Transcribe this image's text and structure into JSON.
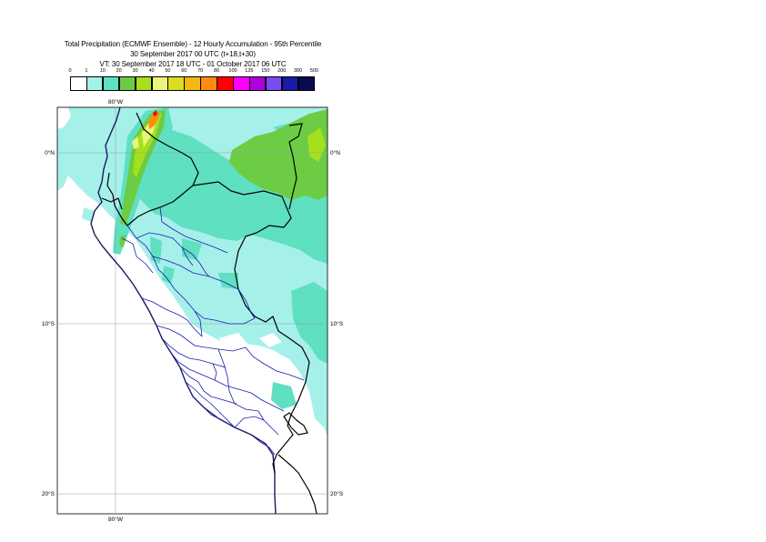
{
  "title": {
    "line1": "Total Precipitation (ECMWF Ensemble) - 12 Hourly Accumulation - 95th Percentile",
    "line2": "30 September 2017 00 UTC (t+18,t+30)",
    "line3": "VT: 30 September 2017 18 UTC - 01 October 2017 06 UTC"
  },
  "legend": {
    "thresholds": [
      "0",
      "1",
      "10",
      "20",
      "30",
      "40",
      "50",
      "60",
      "70",
      "80",
      "100",
      "125",
      "150",
      "200",
      "300",
      "500"
    ],
    "colors": [
      "#ffffff",
      "#a6f0ea",
      "#5fe0c0",
      "#6ccc44",
      "#a6e01c",
      "#e8f57a",
      "#dcdc20",
      "#f4b810",
      "#ff8c10",
      "#ff0000",
      "#ff00ff",
      "#b000dc",
      "#7a4cf2",
      "#1a1aa8",
      "#0a0a52"
    ]
  },
  "map": {
    "longitude_label_top": "80°W",
    "longitude_label_bottom": "80°W",
    "latitude_labels": [
      {
        "left": "0°N",
        "right": "0°N"
      },
      {
        "left": "10°S",
        "right": "10°S"
      },
      {
        "left": "20°S",
        "right": "20°S"
      }
    ],
    "colors": {
      "light_rain": "#a6f0ea",
      "moderate_rain": "#5fe0c0",
      "green_rain": "#6ccc44",
      "yellow_green": "#a6e01c",
      "yellow": "#e8f57a",
      "orange": "#ff8c10",
      "red": "#ff0000",
      "country_border": "#000000",
      "admin_border": "#1a1ab0",
      "coast": "#1a1a66"
    }
  }
}
